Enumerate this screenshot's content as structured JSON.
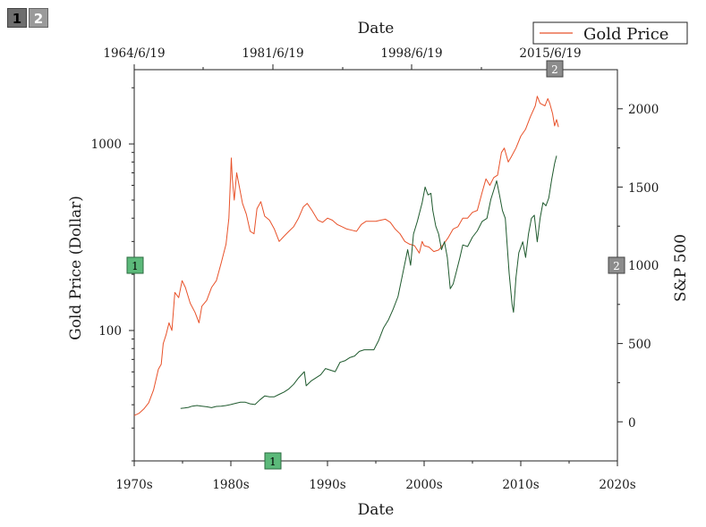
{
  "layer_tabs": [
    {
      "label": "1"
    },
    {
      "label": "2"
    }
  ],
  "badges": {
    "layer1": "1",
    "layer2": "2"
  },
  "colors": {
    "gold": "#e8522a",
    "sp500": "#1f5a2e",
    "badge_green": "#5cb97a",
    "badge_grey": "#8c8c8c"
  },
  "chart_data": {
    "type": "line",
    "title": "",
    "legend": {
      "entries": [
        "Gold Price"
      ],
      "position": "top-right"
    },
    "x_axis": {
      "title": "Date",
      "range_years": [
        1970,
        2020
      ],
      "tick_labels": [
        "1970s",
        "1980s",
        "1990s",
        "2000s",
        "2010s",
        "2020s"
      ]
    },
    "x2_axis": {
      "title": "Date",
      "tick_labels": [
        "1964/6/19",
        "1981/6/19",
        "1998/6/19",
        "2015/6/19"
      ]
    },
    "y_axis": {
      "title": "Gold Price (Dollar)",
      "scale": "log",
      "range": [
        20,
        2500
      ],
      "tick_labels": [
        "100",
        "1000"
      ]
    },
    "y2_axis": {
      "title": "S&P 500",
      "scale": "linear",
      "range": [
        -250,
        2250
      ],
      "tick_labels": [
        "0",
        "500",
        "1000",
        "1500",
        "2000"
      ]
    },
    "series": [
      {
        "name": "Gold Price",
        "axis": "left",
        "points": [
          [
            1970.0,
            35
          ],
          [
            1970.5,
            36
          ],
          [
            1971.0,
            38
          ],
          [
            1971.5,
            41
          ],
          [
            1972.0,
            48
          ],
          [
            1972.5,
            62
          ],
          [
            1972.8,
            66
          ],
          [
            1973.0,
            85
          ],
          [
            1973.3,
            95
          ],
          [
            1973.6,
            110
          ],
          [
            1973.9,
            100
          ],
          [
            1974.2,
            160
          ],
          [
            1974.6,
            150
          ],
          [
            1974.95,
            185
          ],
          [
            1975.3,
            170
          ],
          [
            1975.8,
            140
          ],
          [
            1976.3,
            125
          ],
          [
            1976.7,
            110
          ],
          [
            1977.0,
            135
          ],
          [
            1977.5,
            145
          ],
          [
            1978.0,
            170
          ],
          [
            1978.5,
            185
          ],
          [
            1979.0,
            230
          ],
          [
            1979.5,
            290
          ],
          [
            1979.8,
            400
          ],
          [
            1980.05,
            840
          ],
          [
            1980.15,
            650
          ],
          [
            1980.35,
            500
          ],
          [
            1980.6,
            700
          ],
          [
            1980.85,
            600
          ],
          [
            1981.2,
            480
          ],
          [
            1981.6,
            420
          ],
          [
            1982.0,
            340
          ],
          [
            1982.4,
            330
          ],
          [
            1982.7,
            450
          ],
          [
            1983.1,
            490
          ],
          [
            1983.5,
            410
          ],
          [
            1984.0,
            390
          ],
          [
            1984.5,
            350
          ],
          [
            1985.0,
            300
          ],
          [
            1985.5,
            320
          ],
          [
            1986.0,
            340
          ],
          [
            1986.5,
            360
          ],
          [
            1987.0,
            400
          ],
          [
            1987.5,
            460
          ],
          [
            1987.9,
            480
          ],
          [
            1988.4,
            440
          ],
          [
            1989.0,
            390
          ],
          [
            1989.5,
            380
          ],
          [
            1990.0,
            400
          ],
          [
            1990.5,
            390
          ],
          [
            1991.0,
            370
          ],
          [
            1991.5,
            360
          ],
          [
            1992.0,
            350
          ],
          [
            1992.5,
            345
          ],
          [
            1993.0,
            340
          ],
          [
            1993.5,
            370
          ],
          [
            1994.0,
            385
          ],
          [
            1994.5,
            385
          ],
          [
            1995.0,
            385
          ],
          [
            1995.5,
            390
          ],
          [
            1996.0,
            395
          ],
          [
            1996.5,
            380
          ],
          [
            1997.0,
            350
          ],
          [
            1997.5,
            330
          ],
          [
            1998.0,
            300
          ],
          [
            1998.5,
            290
          ],
          [
            1999.0,
            285
          ],
          [
            1999.5,
            260
          ],
          [
            1999.8,
            300
          ],
          [
            2000.0,
            285
          ],
          [
            2000.5,
            280
          ],
          [
            2001.0,
            265
          ],
          [
            2001.5,
            270
          ],
          [
            2002.0,
            290
          ],
          [
            2002.5,
            315
          ],
          [
            2003.0,
            350
          ],
          [
            2003.5,
            360
          ],
          [
            2004.0,
            400
          ],
          [
            2004.5,
            400
          ],
          [
            2005.0,
            430
          ],
          [
            2005.5,
            440
          ],
          [
            2006.0,
            550
          ],
          [
            2006.4,
            650
          ],
          [
            2006.8,
            600
          ],
          [
            2007.2,
            660
          ],
          [
            2007.6,
            680
          ],
          [
            2008.0,
            900
          ],
          [
            2008.3,
            950
          ],
          [
            2008.7,
            800
          ],
          [
            2009.0,
            850
          ],
          [
            2009.5,
            950
          ],
          [
            2010.0,
            1100
          ],
          [
            2010.5,
            1200
          ],
          [
            2011.0,
            1400
          ],
          [
            2011.5,
            1600
          ],
          [
            2011.7,
            1800
          ],
          [
            2012.0,
            1650
          ],
          [
            2012.5,
            1600
          ],
          [
            2012.8,
            1750
          ],
          [
            2013.0,
            1650
          ],
          [
            2013.3,
            1450
          ],
          [
            2013.5,
            1250
          ],
          [
            2013.7,
            1350
          ],
          [
            2013.9,
            1230
          ]
        ]
      },
      {
        "name": "",
        "axis": "right",
        "points": [
          [
            1974.8,
            85
          ],
          [
            1975.2,
            88
          ],
          [
            1975.6,
            92
          ],
          [
            1976.0,
            100
          ],
          [
            1976.5,
            104
          ],
          [
            1977.0,
            100
          ],
          [
            1977.5,
            96
          ],
          [
            1978.0,
            90
          ],
          [
            1978.5,
            98
          ],
          [
            1979.0,
            100
          ],
          [
            1979.5,
            104
          ],
          [
            1980.0,
            110
          ],
          [
            1980.5,
            118
          ],
          [
            1981.0,
            125
          ],
          [
            1981.5,
            125
          ],
          [
            1982.0,
            115
          ],
          [
            1982.5,
            110
          ],
          [
            1983.0,
            140
          ],
          [
            1983.5,
            165
          ],
          [
            1984.0,
            160
          ],
          [
            1984.5,
            160
          ],
          [
            1985.0,
            175
          ],
          [
            1985.5,
            190
          ],
          [
            1986.0,
            210
          ],
          [
            1986.5,
            240
          ],
          [
            1987.0,
            280
          ],
          [
            1987.6,
            320
          ],
          [
            1987.8,
            230
          ],
          [
            1988.3,
            260
          ],
          [
            1988.8,
            280
          ],
          [
            1989.3,
            300
          ],
          [
            1989.8,
            340
          ],
          [
            1990.3,
            330
          ],
          [
            1990.8,
            320
          ],
          [
            1991.3,
            380
          ],
          [
            1991.8,
            390
          ],
          [
            1992.3,
            410
          ],
          [
            1992.8,
            420
          ],
          [
            1993.3,
            450
          ],
          [
            1993.8,
            460
          ],
          [
            1994.3,
            460
          ],
          [
            1994.8,
            460
          ],
          [
            1995.3,
            520
          ],
          [
            1995.8,
            600
          ],
          [
            1996.3,
            650
          ],
          [
            1996.8,
            720
          ],
          [
            1997.3,
            800
          ],
          [
            1997.8,
            950
          ],
          [
            1998.3,
            1100
          ],
          [
            1998.6,
            1000
          ],
          [
            1998.9,
            1200
          ],
          [
            1999.3,
            1280
          ],
          [
            1999.8,
            1400
          ],
          [
            2000.1,
            1500
          ],
          [
            2000.4,
            1450
          ],
          [
            2000.7,
            1460
          ],
          [
            2000.9,
            1350
          ],
          [
            2001.2,
            1250
          ],
          [
            2001.5,
            1200
          ],
          [
            2001.8,
            1100
          ],
          [
            2002.1,
            1150
          ],
          [
            2002.4,
            1050
          ],
          [
            2002.7,
            850
          ],
          [
            2003.0,
            880
          ],
          [
            2003.3,
            950
          ],
          [
            2003.7,
            1050
          ],
          [
            2004.0,
            1130
          ],
          [
            2004.5,
            1120
          ],
          [
            2005.0,
            1180
          ],
          [
            2005.5,
            1220
          ],
          [
            2006.0,
            1280
          ],
          [
            2006.5,
            1300
          ],
          [
            2006.9,
            1420
          ],
          [
            2007.2,
            1480
          ],
          [
            2007.5,
            1540
          ],
          [
            2007.8,
            1450
          ],
          [
            2008.1,
            1350
          ],
          [
            2008.4,
            1300
          ],
          [
            2008.8,
            950
          ],
          [
            2009.1,
            750
          ],
          [
            2009.25,
            700
          ],
          [
            2009.5,
            920
          ],
          [
            2009.8,
            1080
          ],
          [
            2010.2,
            1150
          ],
          [
            2010.5,
            1050
          ],
          [
            2010.8,
            1200
          ],
          [
            2011.1,
            1300
          ],
          [
            2011.4,
            1320
          ],
          [
            2011.7,
            1150
          ],
          [
            2012.0,
            1300
          ],
          [
            2012.3,
            1400
          ],
          [
            2012.6,
            1380
          ],
          [
            2012.9,
            1430
          ],
          [
            2013.2,
            1550
          ],
          [
            2013.5,
            1650
          ],
          [
            2013.7,
            1700
          ]
        ]
      }
    ]
  }
}
